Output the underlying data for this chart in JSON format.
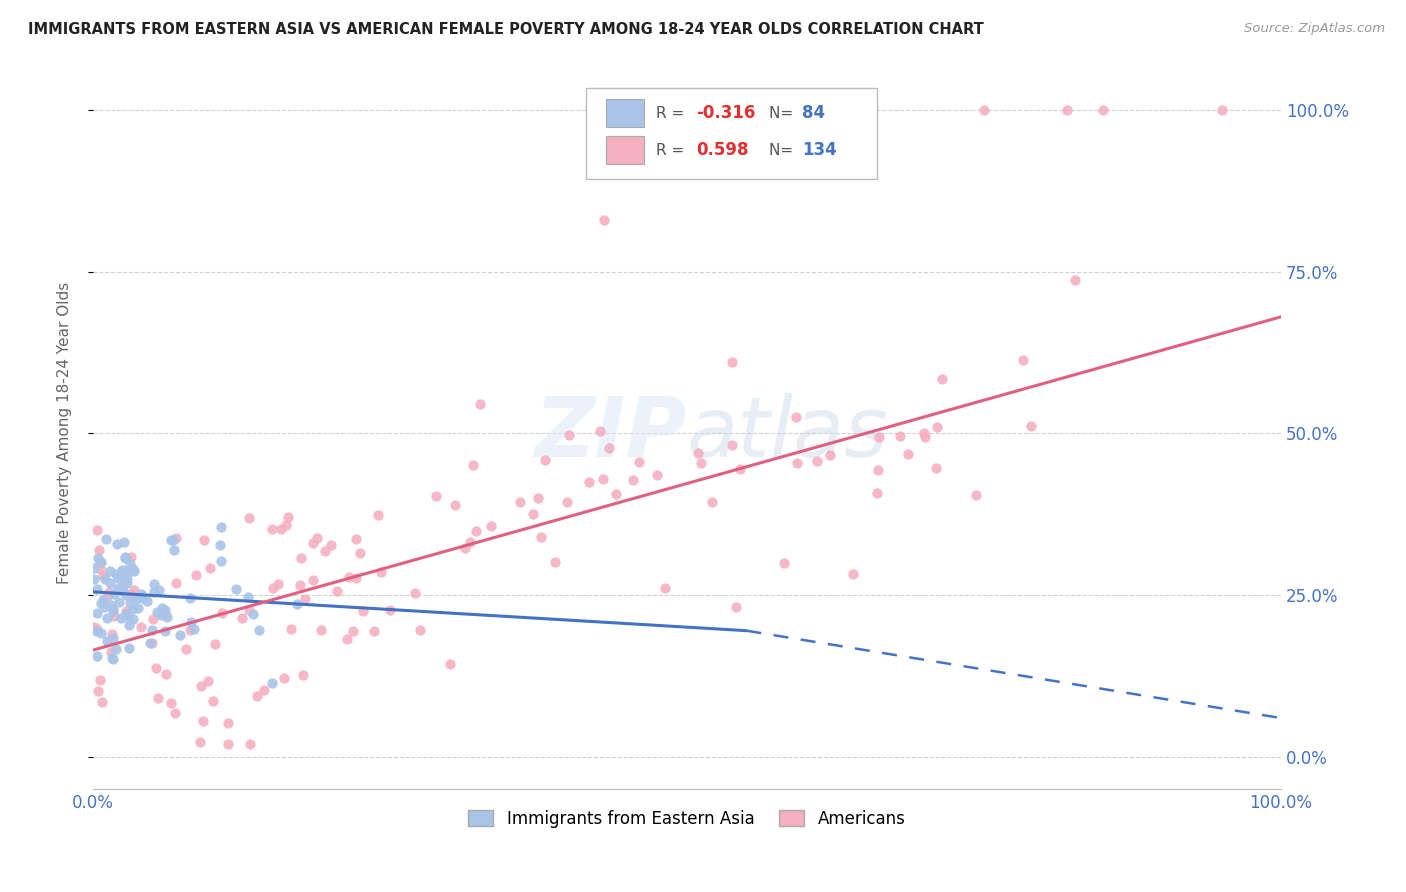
{
  "title": "IMMIGRANTS FROM EASTERN ASIA VS AMERICAN FEMALE POVERTY AMONG 18-24 YEAR OLDS CORRELATION CHART",
  "source": "Source: ZipAtlas.com",
  "ylabel": "Female Poverty Among 18-24 Year Olds",
  "legend_box": {
    "blue_R": "-0.316",
    "blue_N": "84",
    "pink_R": "0.598",
    "pink_N": "134"
  },
  "blue_color": "#a8c4e8",
  "pink_color": "#f5b0c0",
  "blue_line_color": "#4472c4",
  "pink_line_color": "#e06080",
  "title_color": "#222222",
  "axis_label_color": "#4472c4",
  "background_color": "#ffffff",
  "grid_color": "#d0d0d0",
  "ylim_min": -0.05,
  "ylim_max": 1.05,
  "xlim_min": 0.0,
  "xlim_max": 1.0,
  "ytick_positions": [
    0.0,
    0.25,
    0.5,
    0.75,
    1.0
  ],
  "ytick_labels_right": [
    "0.0%",
    "25.0%",
    "50.0%",
    "75.0%",
    "100.0%"
  ],
  "blue_trend_solid": [
    0.0,
    0.55,
    0.255,
    0.195
  ],
  "blue_trend_dashed": [
    0.55,
    1.0,
    0.195,
    0.06
  ],
  "pink_trend": [
    0.0,
    1.0,
    0.165,
    0.68
  ]
}
